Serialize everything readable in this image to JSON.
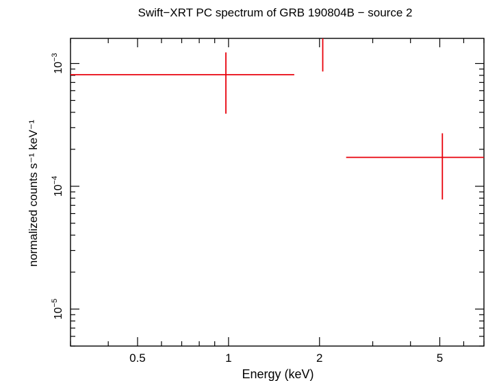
{
  "chart_data": {
    "type": "scatter",
    "title": "Swift−XRT PC spectrum of GRB 190804B − source 2",
    "xlabel": "Energy (keV)",
    "ylabel": "normalized counts s⁻¹ keV⁻¹",
    "x_scale": "log",
    "y_scale": "log",
    "xlim": [
      0.3,
      7.0
    ],
    "ylim": [
      5e-06,
      0.0016
    ],
    "x_ticks": [
      {
        "value": 0.5,
        "label": "0.5"
      },
      {
        "value": 1,
        "label": "1"
      },
      {
        "value": 2,
        "label": "2"
      },
      {
        "value": 5,
        "label": "5"
      }
    ],
    "y_ticks": [
      {
        "value": 0.001,
        "mantissa": "10",
        "exponent": "−3"
      },
      {
        "value": 0.0001,
        "mantissa": "10",
        "exponent": "−4"
      },
      {
        "value": 1e-05,
        "mantissa": "10",
        "exponent": "−5"
      }
    ],
    "grid": false,
    "series": [
      {
        "color": "#e8000b",
        "points": [
          {
            "x": 0.98,
            "x_lo": 0.3,
            "x_hi": 1.65,
            "y": 0.00081,
            "y_lo": 0.00039,
            "y_hi": 0.00123
          },
          {
            "x": 2.05,
            "x_lo": 2.05,
            "x_hi": 2.05,
            "y": 0.0016,
            "y_lo": 0.00086,
            "y_hi": 0.0016
          },
          {
            "x": 5.1,
            "x_lo": 2.45,
            "x_hi": 7.0,
            "y": 0.000172,
            "y_lo": 7.8e-05,
            "y_hi": 0.00027
          }
        ]
      }
    ]
  }
}
